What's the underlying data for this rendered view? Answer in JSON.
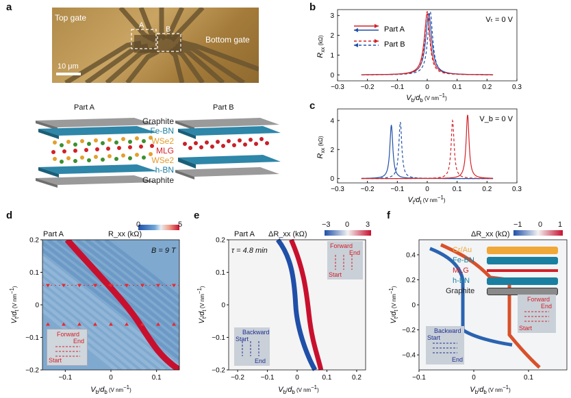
{
  "panels": {
    "a": {
      "label": "a",
      "image_labels": {
        "top_gate": "Top gate",
        "bottom_gate": "Bottom gate",
        "box_a": "A",
        "box_b": "B",
        "scale_bar": "10 μm"
      },
      "part_a_title": "Part A",
      "part_b_title": "Part B",
      "layers": [
        {
          "name": "Graphite",
          "color": "#222222"
        },
        {
          "name": "Fe-BN",
          "color": "#1a7fa0"
        },
        {
          "name": "WSe2",
          "color": "#e39b2b"
        },
        {
          "name": "MLG",
          "color": "#d32027"
        },
        {
          "name": "WSe2",
          "color": "#e39b2b"
        },
        {
          "name": "h-BN",
          "color": "#1a7fa0"
        },
        {
          "name": "Graphite",
          "color": "#222222"
        }
      ]
    },
    "b": {
      "label": "b",
      "condition": "Vₜ = 0 V",
      "legend": [
        "Part A",
        "Part B"
      ]
    },
    "c": {
      "label": "c",
      "condition": "V_b = 0 V"
    },
    "d": {
      "label": "d",
      "part": "Part A",
      "colorbar_min": "0",
      "colorbar_max": "5",
      "colorbar_label": "R_xx (kΩ)",
      "field": "B = 9 T",
      "inset": {
        "line1": "Forward",
        "line2": "End",
        "line3": "Start"
      }
    },
    "e": {
      "label": "e",
      "part": "Part A",
      "colorbar_ticks": [
        "−3",
        "0",
        "3"
      ],
      "colorbar_label": "ΔR_xx (kΩ)",
      "tau": "τ = 4.8 min",
      "inset_forward": {
        "line1": "Forward",
        "line2": "End",
        "line3": "Start"
      },
      "inset_backward": {
        "line1": "Backward",
        "line2": "Start",
        "line3": "End"
      }
    },
    "f": {
      "label": "f",
      "colorbar_ticks": [
        "−1",
        "0",
        "1"
      ],
      "colorbar_label": "ΔR_xx (kΩ)",
      "legend": [
        "Cr/Au",
        "Fe-BN",
        "MLG",
        "h-BN",
        "Graphite"
      ],
      "legend_colors": [
        "#f0a838",
        "#1a7fa0",
        "#d32027",
        "#1a7fa0",
        "#8a8a8a"
      ],
      "inset_forward": {
        "line1": "Forward",
        "line2": "End",
        "line3": "Start"
      },
      "inset_backward": {
        "line1": "Backward",
        "line2": "Start",
        "line3": "End"
      }
    }
  },
  "chart_data": [
    {
      "panel": "b",
      "type": "line",
      "xlabel": "V_b/d_b (V nm⁻¹)",
      "ylabel": "R_xx (kΩ)",
      "xlim": [
        -0.3,
        0.3
      ],
      "ylim": [
        -0.3,
        3.3
      ],
      "xticks": [
        "−0.3",
        "−0.2",
        "−0.1",
        "0",
        "0.1",
        "0.2",
        "0.3"
      ],
      "yticks": [
        "0",
        "1",
        "2",
        "3"
      ],
      "series": [
        {
          "name": "Part A",
          "style": "solid",
          "peaks": [
            {
              "x": 0.005,
              "height": 3.1,
              "width": 0.012
            },
            {
              "x": 0.0,
              "height": 3.1,
              "width": 0.012
            }
          ]
        },
        {
          "name": "Part B",
          "style": "dashed",
          "peaks": [
            {
              "x": 0.01,
              "height": 3.2,
              "width": 0.01
            },
            {
              "x": 0.0,
              "height": 3.2,
              "width": 0.01
            }
          ]
        }
      ]
    },
    {
      "panel": "c",
      "type": "line",
      "xlabel": "V_t/d_t (V nm⁻¹)",
      "ylabel": "R_xx (kΩ)",
      "xlim": [
        -0.3,
        0.3
      ],
      "ylim": [
        -0.3,
        4.8
      ],
      "xticks": [
        "−0.3",
        "−0.2",
        "−0.1",
        "0",
        "0.1",
        "0.2",
        "0.3"
      ],
      "yticks": [
        "0",
        "2",
        "4"
      ],
      "peaks": [
        {
          "x": -0.12,
          "height": 3.7,
          "color": "#1f4fa8",
          "style": "solid"
        },
        {
          "x": -0.09,
          "height": 3.9,
          "color": "#1f4fa8",
          "style": "dashed"
        },
        {
          "x": 0.085,
          "height": 4.0,
          "color": "#d32027",
          "style": "dashed"
        },
        {
          "x": 0.135,
          "height": 4.4,
          "color": "#d32027",
          "style": "solid"
        }
      ]
    },
    {
      "panel": "d",
      "type": "heatmap",
      "xlabel": "V_b/d_b (V nm⁻¹)",
      "ylabel": "V_t/d_t (V nm⁻¹)",
      "xlim": [
        -0.15,
        0.15
      ],
      "ylim": [
        -0.2,
        0.2
      ],
      "xticks": [
        "−0.1",
        "0",
        "0.1"
      ],
      "yticks": [
        "−0.2",
        "−0.1",
        "0",
        "0.1",
        "0.2"
      ],
      "markers_down_y": 0.06,
      "markers_up_y": -0.06
    },
    {
      "panel": "e",
      "type": "heatmap",
      "xlabel": "V_b/d_b (V nm⁻¹)",
      "ylabel": "V_t/d_t (V nm⁻¹)",
      "xlim": [
        -0.23,
        0.23
      ],
      "ylim": [
        -0.2,
        0.2
      ],
      "xticks": [
        "−0.2",
        "−0.1",
        "0",
        "0.1",
        "0.2"
      ],
      "yticks": [
        "−0.2",
        "−0.1",
        "0",
        "0.1",
        "0.2"
      ]
    },
    {
      "panel": "f",
      "type": "heatmap",
      "xlabel": "V_b/d_b (V nm⁻¹)",
      "ylabel": "V_t/d_t (V nm⁻¹)",
      "xlim": [
        -0.1,
        0.17
      ],
      "ylim": [
        -0.52,
        0.52
      ],
      "xticks": [
        "−0.1",
        "0",
        "0.1"
      ],
      "yticks": [
        "−0.4",
        "−0.2",
        "0",
        "0.2",
        "0.4"
      ]
    }
  ]
}
